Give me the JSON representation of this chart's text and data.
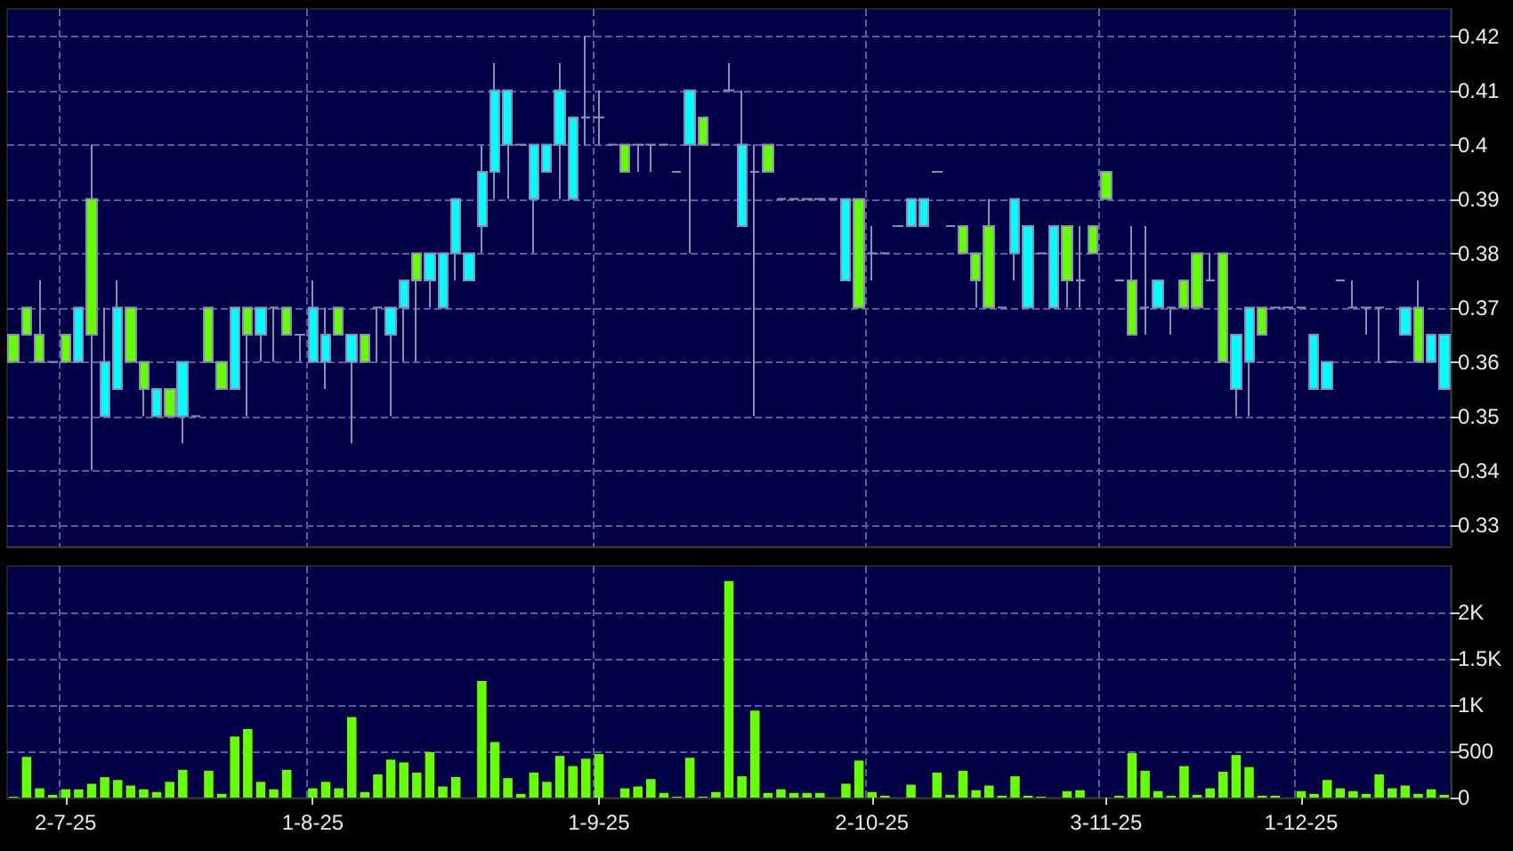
{
  "chart_data": [
    {
      "type": "candlestick",
      "categories": [
        null,
        null,
        null,
        null,
        null,
        null,
        null,
        null,
        null,
        null,
        null,
        null,
        null,
        null,
        null,
        null,
        null,
        null,
        null,
        null,
        null,
        null,
        null,
        null,
        null,
        null,
        null,
        null,
        null,
        null,
        null,
        null,
        null,
        null,
        null,
        null,
        null,
        null,
        null,
        null,
        null,
        null,
        null,
        null,
        null,
        null,
        null,
        null,
        null,
        null,
        null,
        null,
        null,
        null,
        null,
        null,
        null,
        null,
        null,
        null,
        null,
        null,
        null,
        null,
        null,
        null,
        null,
        null,
        null,
        null,
        null,
        null,
        null,
        null,
        null,
        null,
        null,
        null,
        null,
        null,
        null,
        null,
        null,
        null,
        null,
        null,
        null,
        null,
        null,
        null,
        null,
        null,
        null,
        null,
        null,
        null,
        null,
        null,
        null,
        null,
        null,
        null,
        null,
        null,
        null,
        null,
        null,
        null,
        null,
        null,
        null
      ],
      "ohlc": [
        [
          0.365,
          0.365,
          0.36,
          0.36
        ],
        [
          0.37,
          0.37,
          0.365,
          0.365
        ],
        [
          0.365,
          0.375,
          0.36,
          0.36
        ],
        [
          0.36,
          0.36,
          0.36,
          0.36
        ],
        [
          0.365,
          0.365,
          0.36,
          0.36
        ],
        [
          0.36,
          0.37,
          0.36,
          0.37
        ],
        [
          0.39,
          0.4,
          0.34,
          0.365
        ],
        [
          0.35,
          0.37,
          0.35,
          0.36
        ],
        [
          0.355,
          0.375,
          0.355,
          0.37
        ],
        [
          0.37,
          0.37,
          0.36,
          0.36
        ],
        [
          0.36,
          0.36,
          0.35,
          0.355
        ],
        [
          0.35,
          0.355,
          0.35,
          0.355
        ],
        [
          0.355,
          0.355,
          0.35,
          0.35
        ],
        [
          0.35,
          0.36,
          0.345,
          0.36
        ],
        [
          0.35,
          0.35,
          0.35,
          0.35
        ],
        [
          0.37,
          0.37,
          0.36,
          0.36
        ],
        [
          0.36,
          0.36,
          0.355,
          0.355
        ],
        [
          0.355,
          0.37,
          0.355,
          0.37
        ],
        [
          0.37,
          0.37,
          0.35,
          0.365
        ],
        [
          0.365,
          0.37,
          0.36,
          0.37
        ],
        [
          0.37,
          0.37,
          0.36,
          0.37
        ],
        [
          0.37,
          0.37,
          0.365,
          0.365
        ],
        [
          0.365,
          0.365,
          0.36,
          0.365
        ],
        [
          0.36,
          0.375,
          0.36,
          0.37
        ],
        [
          0.36,
          0.37,
          0.355,
          0.365
        ],
        [
          0.37,
          0.37,
          0.365,
          0.365
        ],
        [
          0.36,
          0.365,
          0.345,
          0.365
        ],
        [
          0.365,
          0.365,
          0.36,
          0.36
        ],
        [
          0.37,
          0.37,
          0.36,
          0.37
        ],
        [
          0.365,
          0.37,
          0.35,
          0.37
        ],
        [
          0.37,
          0.375,
          0.36,
          0.375
        ],
        [
          0.38,
          0.38,
          0.36,
          0.375
        ],
        [
          0.375,
          0.38,
          0.37,
          0.38
        ],
        [
          0.37,
          0.38,
          0.37,
          0.38
        ],
        [
          0.38,
          0.39,
          0.375,
          0.39
        ],
        [
          0.375,
          0.38,
          0.375,
          0.38
        ],
        [
          0.385,
          0.4,
          0.38,
          0.395
        ],
        [
          0.395,
          0.415,
          0.39,
          0.41
        ],
        [
          0.4,
          0.41,
          0.39,
          0.41
        ],
        [
          0.4,
          0.4,
          0.4,
          0.4
        ],
        [
          0.39,
          0.4,
          0.38,
          0.4
        ],
        [
          0.395,
          0.4,
          0.395,
          0.4
        ],
        [
          0.4,
          0.415,
          0.39,
          0.41
        ],
        [
          0.39,
          0.405,
          0.39,
          0.405
        ],
        [
          0.405,
          0.42,
          0.4,
          0.405
        ],
        [
          0.405,
          0.41,
          0.4,
          0.405
        ],
        [
          0.4,
          0.4,
          0.4,
          0.4
        ],
        [
          0.4,
          0.4,
          0.395,
          0.395
        ],
        [
          0.4,
          0.4,
          0.395,
          0.4
        ],
        [
          0.4,
          0.4,
          0.395,
          0.4
        ],
        [
          0.4,
          0.4,
          0.4,
          0.4
        ],
        [
          0.395,
          0.395,
          0.395,
          0.395
        ],
        [
          0.4,
          0.41,
          0.38,
          0.41
        ],
        [
          0.405,
          0.405,
          0.4,
          0.4
        ],
        [
          0.4,
          0.4,
          0.4,
          0.4
        ],
        [
          0.41,
          0.415,
          0.41,
          0.41
        ],
        [
          0.385,
          0.41,
          0.385,
          0.4
        ],
        [
          0.395,
          0.4,
          0.35,
          0.395
        ],
        [
          0.4,
          0.4,
          0.395,
          0.395
        ],
        [
          0.39,
          0.39,
          0.39,
          0.39
        ],
        [
          0.39,
          0.39,
          0.39,
          0.39
        ],
        [
          0.39,
          0.39,
          0.39,
          0.39
        ],
        [
          0.39,
          0.39,
          0.39,
          0.39
        ],
        [
          0.39,
          0.39,
          0.39,
          0.39
        ],
        [
          0.375,
          0.39,
          0.375,
          0.39
        ],
        [
          0.39,
          0.39,
          0.37,
          0.37
        ],
        [
          0.38,
          0.385,
          0.375,
          0.38
        ],
        [
          0.38,
          0.38,
          0.38,
          0.38
        ],
        [
          0.385,
          0.385,
          0.385,
          0.385
        ],
        [
          0.385,
          0.39,
          0.385,
          0.39
        ],
        [
          0.385,
          0.39,
          0.385,
          0.39
        ],
        [
          0.395,
          0.395,
          0.395,
          0.395
        ],
        [
          0.385,
          0.385,
          0.385,
          0.385
        ],
        [
          0.385,
          0.385,
          0.38,
          0.38
        ],
        [
          0.38,
          0.38,
          0.37,
          0.375
        ],
        [
          0.385,
          0.39,
          0.37,
          0.37
        ],
        [
          0.37,
          0.37,
          0.37,
          0.37
        ],
        [
          0.38,
          0.39,
          0.375,
          0.39
        ],
        [
          0.37,
          0.385,
          0.37,
          0.385
        ],
        [
          0.38,
          0.38,
          0.38,
          0.38
        ],
        [
          0.37,
          0.385,
          0.37,
          0.385
        ],
        [
          0.385,
          0.385,
          0.37,
          0.375
        ],
        [
          0.375,
          0.385,
          0.37,
          0.375
        ],
        [
          0.385,
          0.385,
          0.38,
          0.38
        ],
        [
          0.395,
          0.395,
          0.39,
          0.39
        ],
        [
          0.375,
          0.375,
          0.375,
          0.375
        ],
        [
          0.375,
          0.385,
          0.365,
          0.365
        ],
        [
          0.37,
          0.385,
          0.365,
          0.37
        ],
        [
          0.37,
          0.375,
          0.37,
          0.375
        ],
        [
          0.37,
          0.37,
          0.365,
          0.37
        ],
        [
          0.375,
          0.375,
          0.37,
          0.37
        ],
        [
          0.38,
          0.38,
          0.37,
          0.37
        ],
        [
          0.375,
          0.38,
          0.375,
          0.375
        ],
        [
          0.38,
          0.38,
          0.36,
          0.36
        ],
        [
          0.355,
          0.365,
          0.35,
          0.365
        ],
        [
          0.36,
          0.37,
          0.35,
          0.37
        ],
        [
          0.37,
          0.37,
          0.365,
          0.365
        ],
        [
          0.37,
          0.37,
          0.37,
          0.37
        ],
        [
          0.37,
          0.37,
          0.37,
          0.37
        ],
        [
          0.37,
          0.37,
          0.37,
          0.37
        ],
        [
          0.355,
          0.365,
          0.355,
          0.365
        ],
        [
          0.355,
          0.36,
          0.355,
          0.36
        ],
        [
          0.375,
          0.375,
          0.375,
          0.375
        ],
        [
          0.37,
          0.375,
          0.37,
          0.37
        ],
        [
          0.37,
          0.37,
          0.365,
          0.37
        ],
        [
          0.37,
          0.37,
          0.36,
          0.37
        ],
        [
          0.36,
          0.36,
          0.36,
          0.36
        ],
        [
          0.365,
          0.37,
          0.365,
          0.37
        ],
        [
          0.37,
          0.375,
          0.36,
          0.36
        ],
        [
          0.36,
          0.365,
          0.36,
          0.365
        ],
        [
          0.355,
          0.365,
          0.355,
          0.365
        ]
      ],
      "colors": [
        "#66ff00",
        "#66ff00",
        "#66ff00",
        "#9090b8",
        "#66ff00",
        "#00ffff",
        "#66ff00",
        "#00ffff",
        "#00ffff",
        "#66ff00",
        "#66ff00",
        "#00ffff",
        "#66ff00",
        "#00ffff",
        "#9090b8",
        "#66ff00",
        "#66ff00",
        "#00ffff",
        "#66ff00",
        "#00ffff",
        "#9090b8",
        "#66ff00",
        "#9090b8",
        "#00ffff",
        "#00ffff",
        "#66ff00",
        "#00ffff",
        "#66ff00",
        "#9090b8",
        "#00ffff",
        "#00ffff",
        "#66ff00",
        "#00ffff",
        "#00ffff",
        "#00ffff",
        "#00ffff",
        "#00ffff",
        "#00ffff",
        "#00ffff",
        "#9090b8",
        "#00ffff",
        "#00ffff",
        "#00ffff",
        "#00ffff",
        "#9090b8",
        "#9090b8",
        "#9090b8",
        "#66ff00",
        "#9090b8",
        "#9090b8",
        "#9090b8",
        "#9090b8",
        "#00ffff",
        "#66ff00",
        "#9090b8",
        "#9090b8",
        "#00ffff",
        "#9090b8",
        "#66ff00",
        "#9090b8",
        "#9090b8",
        "#9090b8",
        "#9090b8",
        "#9090b8",
        "#00ffff",
        "#66ff00",
        "#9090b8",
        "#9090b8",
        "#9090b8",
        "#00ffff",
        "#00ffff",
        "#9090b8",
        "#9090b8",
        "#66ff00",
        "#66ff00",
        "#66ff00",
        "#9090b8",
        "#00ffff",
        "#00ffff",
        "#9090b8",
        "#00ffff",
        "#66ff00",
        "#9090b8",
        "#66ff00",
        "#66ff00",
        "#9090b8",
        "#66ff00",
        "#9090b8",
        "#00ffff",
        "#9090b8",
        "#66ff00",
        "#66ff00",
        "#9090b8",
        "#66ff00",
        "#00ffff",
        "#00ffff",
        "#66ff00",
        "#9090b8",
        "#9090b8",
        "#9090b8",
        "#00ffff",
        "#00ffff",
        "#9090b8",
        "#9090b8",
        "#9090b8",
        "#9090b8",
        "#9090b8",
        "#00ffff",
        "#66ff00",
        "#00ffff",
        "#00ffff"
      ],
      "ylim": [
        0.326,
        0.425
      ],
      "yticks": [
        0.33,
        0.34,
        0.35,
        0.36,
        0.37,
        0.38,
        0.39,
        0.4,
        0.41,
        0.42
      ],
      "grid": true,
      "tick_labels": "y"
    },
    {
      "type": "bar",
      "categories": [
        null,
        null,
        null,
        null,
        "2-7-25",
        null,
        null,
        null,
        null,
        null,
        null,
        null,
        null,
        null,
        null,
        null,
        null,
        null,
        null,
        null,
        null,
        null,
        null,
        "1-8-25",
        null,
        null,
        null,
        null,
        null,
        null,
        null,
        null,
        null,
        null,
        null,
        null,
        null,
        null,
        null,
        null,
        null,
        null,
        null,
        null,
        null,
        "1-9-25",
        null,
        null,
        null,
        null,
        null,
        null,
        null,
        null,
        null,
        null,
        null,
        null,
        null,
        null,
        null,
        null,
        null,
        null,
        null,
        null,
        "2-10-25",
        null,
        null,
        null,
        null,
        null,
        null,
        null,
        null,
        null,
        null,
        null,
        null,
        null,
        null,
        null,
        null,
        null,
        "3-11-25",
        null,
        null,
        null,
        null,
        null,
        null,
        null,
        null,
        null,
        null,
        null,
        null,
        null,
        null,
        "1-12-25",
        null,
        null,
        null,
        null,
        null,
        null,
        null,
        null,
        null,
        null,
        null
      ],
      "values": [
        10,
        440,
        100,
        30,
        90,
        90,
        150,
        220,
        190,
        130,
        90,
        60,
        170,
        300,
        0,
        290,
        40,
        660,
        740,
        170,
        90,
        300,
        0,
        100,
        170,
        100,
        870,
        60,
        250,
        410,
        380,
        270,
        490,
        120,
        220,
        0,
        1260,
        600,
        210,
        40,
        270,
        170,
        450,
        340,
        420,
        470,
        0,
        100,
        120,
        200,
        50,
        10,
        430,
        10,
        60,
        2340,
        230,
        940,
        50,
        90,
        50,
        50,
        50,
        0,
        150,
        400,
        60,
        20,
        0,
        140,
        0,
        270,
        30,
        290,
        80,
        130,
        20,
        230,
        20,
        10,
        0,
        70,
        80,
        0,
        0,
        20,
        480,
        290,
        70,
        20,
        340,
        30,
        100,
        280,
        460,
        330,
        20,
        20,
        0,
        70,
        40,
        190,
        100,
        70,
        40,
        250,
        100,
        130,
        40,
        90,
        30
      ],
      "color": "#66ff00",
      "ylim": [
        0,
        2500
      ],
      "yticks": [
        0,
        500,
        {
          "value": 1000,
          "label": "1K"
        },
        {
          "value": 1500,
          "label": "1.5K"
        },
        {
          "value": 2000,
          "label": "2K"
        }
      ],
      "grid": true
    }
  ]
}
